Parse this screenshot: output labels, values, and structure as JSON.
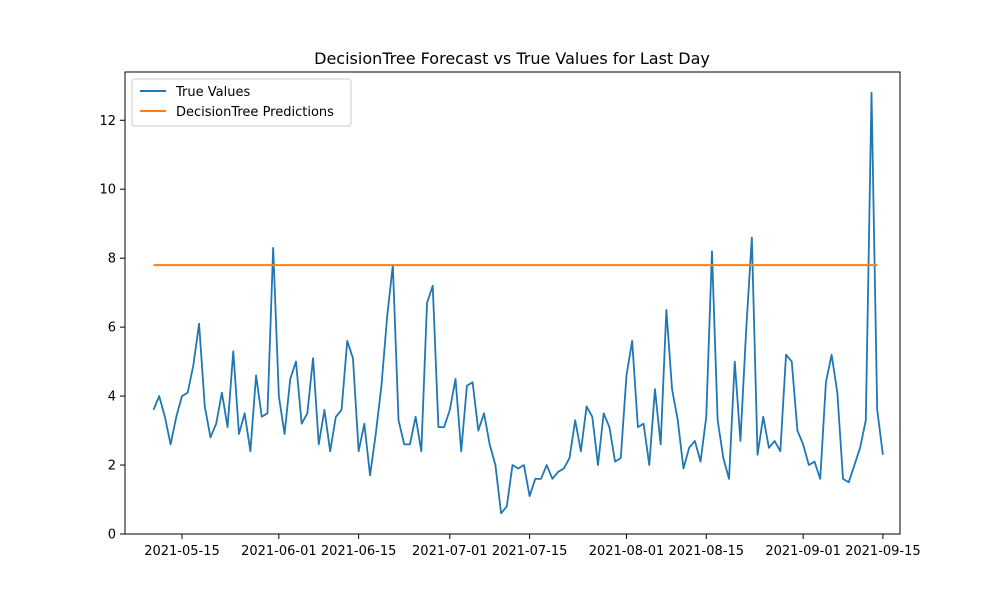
{
  "chart_data": {
    "type": "line",
    "title": "DecisionTree Forecast vs True Values for Last Day",
    "xlabel": "",
    "ylabel": "",
    "x_start": "2021-05-10",
    "x_end": "2021-09-14",
    "xlim": [
      "2021-05-05",
      "2021-09-18"
    ],
    "ylim": [
      0,
      13.4
    ],
    "xticks": [
      {
        "date": "2021-05-15",
        "label": "2021-05-15"
      },
      {
        "date": "2021-06-01",
        "label": "2021-06-01"
      },
      {
        "date": "2021-06-15",
        "label": "2021-06-15"
      },
      {
        "date": "2021-07-01",
        "label": "2021-07-01"
      },
      {
        "date": "2021-07-15",
        "label": "2021-07-15"
      },
      {
        "date": "2021-08-01",
        "label": "2021-08-01"
      },
      {
        "date": "2021-08-15",
        "label": "2021-08-15"
      },
      {
        "date": "2021-09-01",
        "label": "2021-09-01"
      },
      {
        "date": "2021-09-15",
        "label": "2021-09-15"
      }
    ],
    "yticks": [
      0,
      2,
      4,
      6,
      8,
      10,
      12
    ],
    "legend_position": "top-left",
    "grid": false,
    "series": [
      {
        "name": "True Values",
        "color": "#1f77b4",
        "values": [
          3.6,
          4.0,
          3.4,
          2.6,
          3.4,
          4.0,
          4.1,
          4.9,
          6.1,
          3.7,
          2.8,
          3.2,
          4.1,
          3.1,
          5.3,
          2.9,
          3.5,
          2.4,
          4.6,
          3.4,
          3.5,
          8.3,
          4.0,
          2.9,
          4.5,
          5.0,
          3.2,
          3.5,
          5.1,
          2.6,
          3.6,
          2.4,
          3.4,
          3.6,
          5.6,
          5.1,
          2.4,
          3.2,
          1.7,
          2.9,
          4.3,
          6.3,
          7.8,
          3.3,
          2.6,
          2.6,
          3.4,
          2.4,
          6.7,
          7.2,
          3.1,
          3.1,
          3.6,
          4.5,
          2.4,
          4.3,
          4.4,
          3.0,
          3.5,
          2.6,
          2.0,
          0.6,
          0.8,
          2.0,
          1.9,
          2.0,
          1.1,
          1.6,
          1.6,
          2.0,
          1.6,
          1.8,
          1.9,
          2.2,
          3.3,
          2.4,
          3.7,
          3.4,
          2.0,
          3.5,
          3.1,
          2.1,
          2.2,
          4.6,
          5.6,
          3.1,
          3.2,
          2.0,
          4.2,
          2.6,
          6.5,
          4.2,
          3.3,
          1.9,
          2.5,
          2.7,
          2.1,
          3.4,
          8.2,
          3.3,
          2.2,
          1.6,
          5.0,
          2.7,
          5.9,
          8.6,
          2.3,
          3.4,
          2.5,
          2.7,
          2.4,
          5.2,
          5.0,
          3.0,
          2.6,
          2.0,
          2.1,
          1.6,
          4.4,
          5.2,
          4.1,
          1.6,
          1.5,
          2.0,
          2.5,
          3.3,
          12.8,
          3.6,
          2.3
        ]
      },
      {
        "name": "DecisionTree Predictions",
        "color": "#ff7f0e",
        "constant_value": 7.8
      }
    ]
  }
}
